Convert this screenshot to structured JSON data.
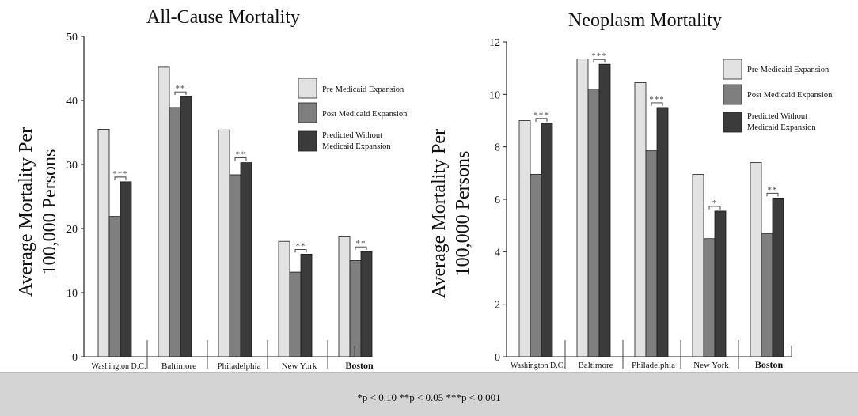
{
  "legend": {
    "pre": "Pre Medicaid Expansion",
    "post": "Post Medicaid Expansion",
    "predicted_line1": "Predicted Without",
    "predicted_line2": "Medicaid Expansion"
  },
  "colors": {
    "pre": "#e2e2e2",
    "post": "#7f7f7f",
    "predicted": "#3b3b3b"
  },
  "footnote": "*p < 0.10  **p < 0.05 ***p < 0.001",
  "chart_data": [
    {
      "type": "bar",
      "title": "All-Cause Mortality",
      "ylabel_line1": "Average Mortality Per",
      "ylabel_line2": "100,000 Persons",
      "ylim": [
        0,
        50
      ],
      "yticks": [
        "0",
        "10",
        "20",
        "30",
        "40",
        "50"
      ],
      "categories": [
        "Washington D.C.",
        "Baltimore",
        "Philadelphia",
        "New York",
        "Boston"
      ],
      "series": [
        {
          "name": "Pre Medicaid Expansion",
          "values": [
            35.5,
            45.2,
            35.4,
            18.0,
            18.7
          ]
        },
        {
          "name": "Post Medicaid Expansion",
          "values": [
            21.9,
            38.9,
            28.4,
            13.2,
            15.0
          ]
        },
        {
          "name": "Predicted Without Medicaid Expansion",
          "values": [
            27.3,
            40.6,
            30.3,
            16.0,
            16.4
          ]
        }
      ],
      "significance": [
        "***",
        "**",
        "**",
        "**",
        "**"
      ]
    },
    {
      "type": "bar",
      "title": "Neoplasm Mortality",
      "ylabel_line1": "Average Mortality Per",
      "ylabel_line2": "100,000 Persons",
      "ylim": [
        0,
        12
      ],
      "yticks": [
        "0",
        "2",
        "4",
        "6",
        "8",
        "10",
        "12"
      ],
      "categories": [
        "Washington D.C.",
        "Baltimore",
        "Philadelphia",
        "New York",
        "Boston"
      ],
      "series": [
        {
          "name": "Pre Medicaid Expansion",
          "values": [
            9.0,
            11.35,
            10.45,
            6.95,
            7.4
          ]
        },
        {
          "name": "Post Medicaid Expansion",
          "values": [
            6.95,
            10.2,
            7.85,
            4.5,
            4.7
          ]
        },
        {
          "name": "Predicted Without Medicaid Expansion",
          "values": [
            8.9,
            11.15,
            9.5,
            5.55,
            6.05
          ]
        }
      ],
      "significance": [
        "***",
        "***",
        "***",
        "*",
        "**"
      ]
    }
  ]
}
